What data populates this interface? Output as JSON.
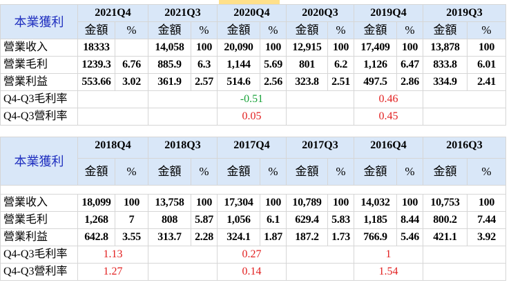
{
  "title": "本業獲利",
  "sub_headers": {
    "amount": "金額",
    "pct": "%"
  },
  "rows_labels": [
    "營業收入",
    "營業毛利",
    "營業利益",
    "Q4-Q3毛利率",
    "Q4-Q3營利率"
  ],
  "block1": {
    "periods": [
      "2021Q4",
      "2021Q3",
      "2020Q4",
      "2020Q3",
      "2019Q4",
      "2019Q3"
    ],
    "revenue": [
      [
        "18333",
        ""
      ],
      [
        "14,058",
        "100"
      ],
      [
        "20,090",
        "100"
      ],
      [
        "12,915",
        "100"
      ],
      [
        "17,409",
        "100"
      ],
      [
        "13,878",
        "100"
      ]
    ],
    "gross": [
      [
        "1239.3",
        "6.76"
      ],
      [
        "885.9",
        "6.3"
      ],
      [
        "1,144",
        "5.69"
      ],
      [
        "801",
        "6.2"
      ],
      [
        "1,126",
        "6.47"
      ],
      [
        "833.8",
        "6.01"
      ]
    ],
    "operating": [
      [
        "553.66",
        "3.02"
      ],
      [
        "361.9",
        "2.57"
      ],
      [
        "514.6",
        "2.56"
      ],
      [
        "323.8",
        "2.51"
      ],
      [
        "497.5",
        "2.86"
      ],
      [
        "334.9",
        "2.41"
      ]
    ],
    "gm_diff": [
      "",
      "",
      "-0.51",
      "",
      "0.46",
      ""
    ],
    "op_diff": [
      "",
      "",
      "0.05",
      "",
      "0.45",
      ""
    ]
  },
  "block2": {
    "periods": [
      "2018Q4",
      "2018Q3",
      "2017Q4",
      "2017Q3",
      "2016Q4",
      "2016Q3"
    ],
    "revenue": [
      [
        "18,099",
        "100"
      ],
      [
        "13,758",
        "100"
      ],
      [
        "17,304",
        "100"
      ],
      [
        "10,789",
        "100"
      ],
      [
        "14,032",
        "100"
      ],
      [
        "10,753",
        "100"
      ]
    ],
    "gross": [
      [
        "1,268",
        "7"
      ],
      [
        "808",
        "5.87"
      ],
      [
        "1,056",
        "6.1"
      ],
      [
        "629.4",
        "5.83"
      ],
      [
        "1,185",
        "8.44"
      ],
      [
        "800.2",
        "7.44"
      ]
    ],
    "operating": [
      [
        "642.8",
        "3.55"
      ],
      [
        "313.7",
        "2.28"
      ],
      [
        "324.1",
        "1.87"
      ],
      [
        "187.2",
        "1.73"
      ],
      [
        "766.9",
        "5.46"
      ],
      [
        "421.1",
        "3.92"
      ]
    ],
    "gm_diff": [
      "1.13",
      "",
      "0.27",
      "",
      "1",
      ""
    ],
    "op_diff": [
      "1.27",
      "",
      "0.14",
      "",
      "1.54",
      ""
    ]
  },
  "colors": {
    "header_bg": "#d9e7f8",
    "title": "#1f2fbf",
    "negative": "#1aa33a",
    "positive": "#e21f1f",
    "highlight": "#ffe08a"
  }
}
